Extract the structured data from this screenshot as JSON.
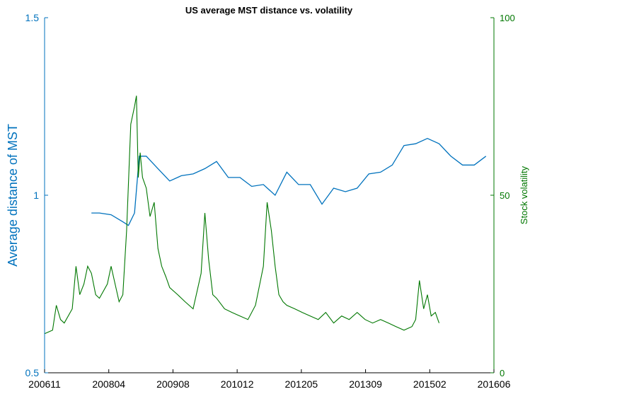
{
  "chart_data": {
    "type": "line",
    "title": "US average MST distance vs. volatility",
    "xlabel": "",
    "x_tick_labels": [
      "200611",
      "200804",
      "200908",
      "201012",
      "201205",
      "201309",
      "201502",
      "201606"
    ],
    "y_left": {
      "label": "Average distance of MST",
      "ylim": [
        0.5,
        1.5
      ],
      "ticks": [
        "0.5",
        "1",
        "1.5"
      ],
      "color": "#0072BD"
    },
    "y_right": {
      "label": "Stock volatility",
      "ylim": [
        0,
        100
      ],
      "ticks": [
        "0",
        "50",
        "100"
      ],
      "color": "#007700"
    },
    "grid": false,
    "series": [
      {
        "axis": "left",
        "color": "#0072BD",
        "x": [
          2007.83,
          2008.0,
          2008.25,
          2008.5,
          2008.62,
          2008.75,
          2008.85,
          2009.0,
          2009.25,
          2009.5,
          2009.75,
          2010.0,
          2010.25,
          2010.5,
          2010.75,
          2011.0,
          2011.25,
          2011.5,
          2011.75,
          2012.0,
          2012.25,
          2012.5,
          2012.75,
          2013.0,
          2013.25,
          2013.5,
          2013.75,
          2014.0,
          2014.25,
          2014.5,
          2014.75,
          2015.0,
          2015.25,
          2015.5,
          2015.75,
          2016.0,
          2016.25
        ],
        "values": [
          0.95,
          0.95,
          0.945,
          0.925,
          0.915,
          0.95,
          1.11,
          1.11,
          1.075,
          1.04,
          1.055,
          1.06,
          1.075,
          1.095,
          1.05,
          1.05,
          1.025,
          1.03,
          1.0,
          1.065,
          1.03,
          1.03,
          0.975,
          1.02,
          1.01,
          1.02,
          1.06,
          1.065,
          1.085,
          1.14,
          1.145,
          1.16,
          1.145,
          1.11,
          1.085,
          1.085,
          1.11
        ]
      },
      {
        "axis": "right",
        "color": "#007700",
        "x": [
          2006.83,
          2007.0,
          2007.08,
          2007.17,
          2007.25,
          2007.42,
          2007.5,
          2007.58,
          2007.67,
          2007.75,
          2007.83,
          2007.92,
          2008.0,
          2008.17,
          2008.25,
          2008.42,
          2008.5,
          2008.58,
          2008.67,
          2008.75,
          2008.79,
          2008.83,
          2008.87,
          2008.92,
          2009.0,
          2009.08,
          2009.17,
          2009.25,
          2009.33,
          2009.42,
          2009.5,
          2009.67,
          2009.83,
          2010.0,
          2010.17,
          2010.25,
          2010.33,
          2010.42,
          2010.5,
          2010.67,
          2010.83,
          2011.0,
          2011.17,
          2011.33,
          2011.5,
          2011.58,
          2011.67,
          2011.75,
          2011.83,
          2011.92,
          2012.0,
          2012.17,
          2012.33,
          2012.5,
          2012.67,
          2012.83,
          2013.0,
          2013.17,
          2013.33,
          2013.5,
          2013.67,
          2013.83,
          2014.0,
          2014.17,
          2014.33,
          2014.5,
          2014.67,
          2014.75,
          2014.83,
          2014.92,
          2015.0,
          2015.08,
          2015.17,
          2015.25
        ],
        "values": [
          11,
          12,
          19,
          15,
          14,
          18,
          30,
          22,
          25,
          30,
          28,
          22,
          21,
          25,
          30,
          20,
          22,
          40,
          70,
          75,
          78,
          55,
          62,
          55,
          52,
          44,
          48,
          35,
          30,
          27,
          24,
          22,
          20,
          18,
          28,
          45,
          32,
          22,
          21,
          18,
          17,
          16,
          15,
          19,
          30,
          48,
          40,
          30,
          22,
          20,
          19,
          18,
          17,
          16,
          15,
          17,
          14,
          16,
          15,
          17,
          15,
          14,
          15,
          14,
          13,
          12,
          13,
          15,
          26,
          18,
          22,
          16,
          17,
          14
        ]
      }
    ]
  }
}
